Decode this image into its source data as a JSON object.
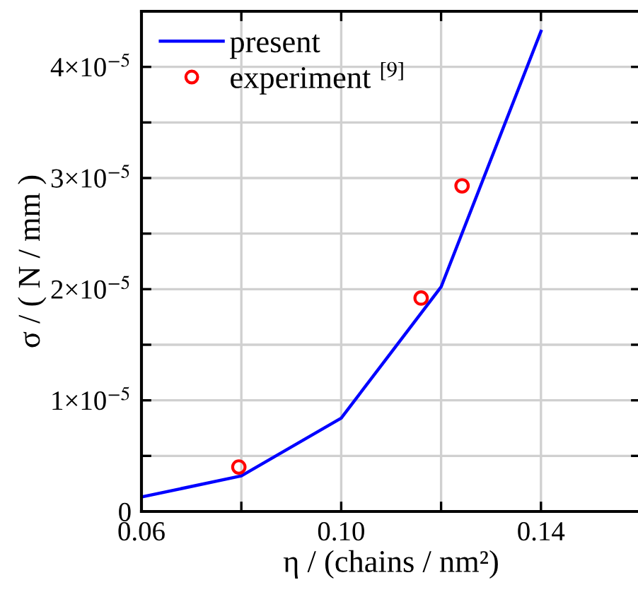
{
  "chart_data": {
    "type": "line",
    "xlabel": "η / (chains / nm²)",
    "ylabel": "σ / ( N / mm )",
    "xlim": [
      0.06,
      0.16
    ],
    "ylim": [
      0,
      4.5e-05
    ],
    "xticks": [
      0.06,
      {
        "value": 0.08,
        "label": null
      },
      {
        "value": 0.1,
        "label": "0.10"
      },
      {
        "value": 0.12,
        "label": null
      },
      0.14,
      {
        "value": 0.16,
        "label": null
      }
    ],
    "yticks": [
      0,
      {
        "value": 5e-06,
        "label": null
      },
      {
        "value": 1e-05,
        "label": "1×10$^{−5}$"
      },
      {
        "value": 1.5e-05,
        "label": null
      },
      {
        "value": 2e-05,
        "label": "2×10$^{−5}$"
      },
      {
        "value": 2.5e-05,
        "label": null
      },
      {
        "value": 3e-05,
        "label": "3×10$^{−5}$"
      },
      {
        "value": 3.5e-05,
        "label": null
      },
      {
        "value": 4e-05,
        "label": "4×10$^{−5}$"
      },
      {
        "value": 4.5e-05,
        "label": null
      }
    ],
    "grid": true,
    "legend": "top left",
    "series": [
      {
        "name": "present",
        "color": "#0000ff",
        "marker": "none",
        "line_style": "solid",
        "x": [
          0.06,
          0.08,
          0.1,
          0.12,
          0.14
        ],
        "values": [
          1.3e-06,
          3.2e-06,
          8.4e-06,
          2.02e-05,
          4.32e-05
        ]
      },
      {
        "name": "experiment $^{[9]}$",
        "type": "scatter",
        "color": "#ff0000",
        "marker": "circle",
        "x": [
          0.0795,
          0.116,
          0.1242
        ],
        "values": [
          4e-06,
          1.92e-05,
          2.93e-05
        ]
      }
    ]
  }
}
